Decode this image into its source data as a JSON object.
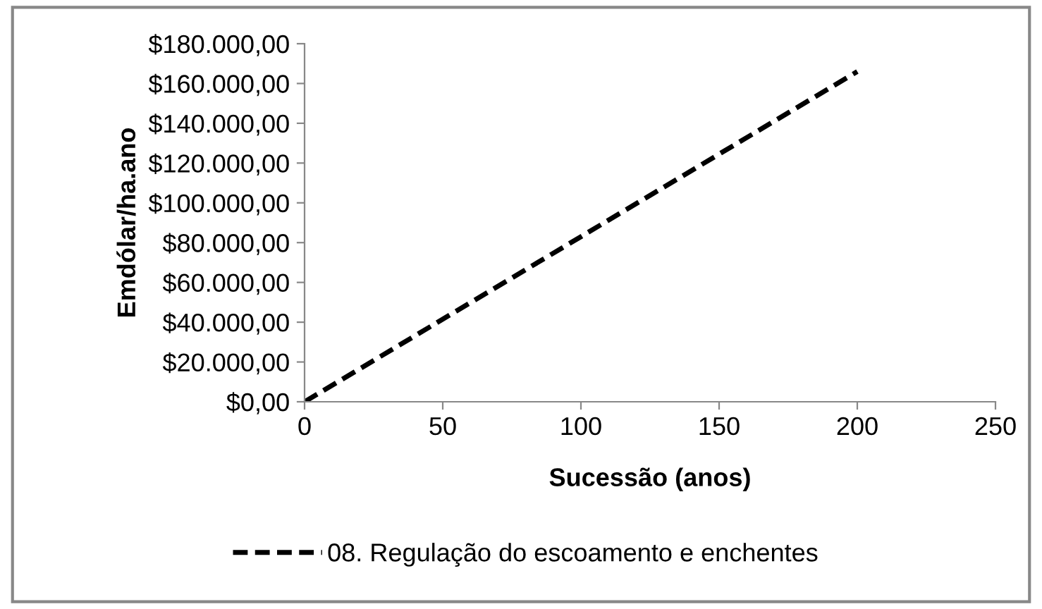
{
  "chart_data": {
    "type": "line",
    "xlabel": "Sucessão (anos)",
    "ylabel": "Emdólar/ha.ano",
    "x": [
      0,
      200
    ],
    "series": [
      {
        "name": "08. Regulação do escoamento e enchentes",
        "color": "#000000",
        "values": [
          0,
          166000
        ]
      }
    ],
    "xlim": [
      0,
      250
    ],
    "xticks": [
      0,
      50,
      100,
      150,
      200,
      250
    ],
    "ylim": [
      0,
      180000
    ],
    "yticks": [
      {
        "value": 0,
        "label": "$0,00"
      },
      {
        "value": 20000,
        "label": "$20.000,00"
      },
      {
        "value": 40000,
        "label": "$40.000,00"
      },
      {
        "value": 60000,
        "label": "$60.000,00"
      },
      {
        "value": 80000,
        "label": "$80.000,00"
      },
      {
        "value": 100000,
        "label": "$100.000,00"
      },
      {
        "value": 120000,
        "label": "$120.000,00"
      },
      {
        "value": 140000,
        "label": "$140.000,00"
      },
      {
        "value": 160000,
        "label": "$160.000,00"
      },
      {
        "value": 180000,
        "label": "$180.000,00"
      }
    ],
    "grid": false,
    "legend": "bottom",
    "line_style": "dashed",
    "marker": "none"
  }
}
